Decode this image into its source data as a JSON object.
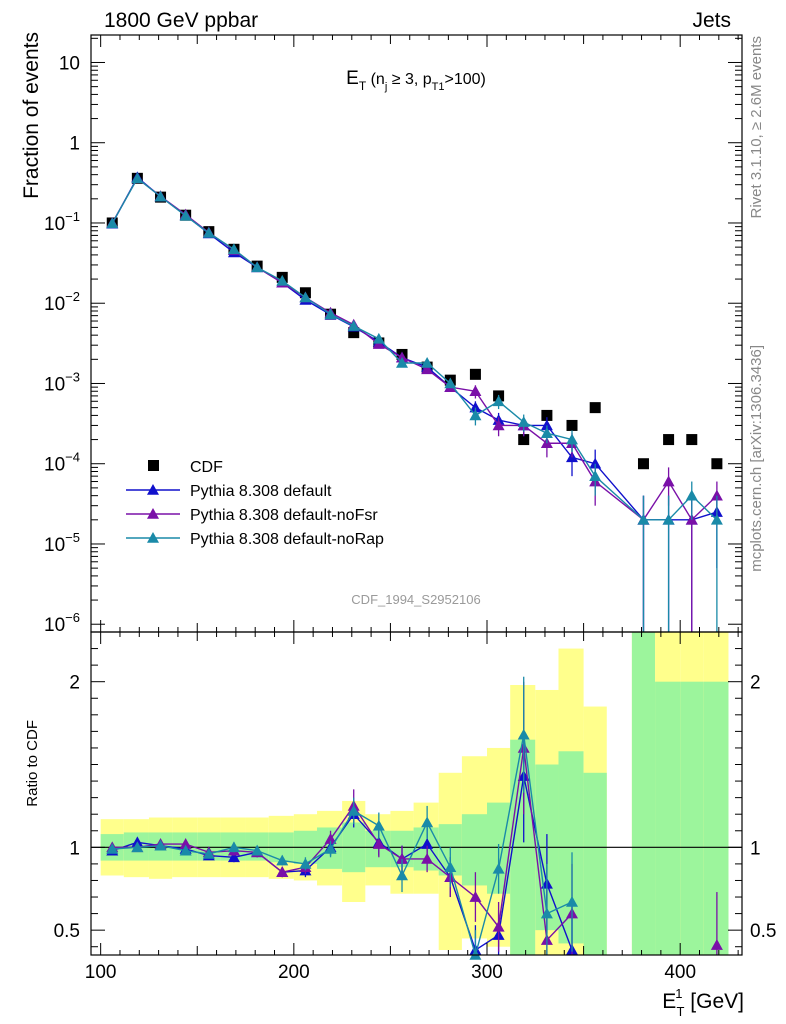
{
  "header": {
    "left": "1800 GeV ppbar",
    "right": "Jets",
    "side_top": "Rivet 3.1.10, ≥ 2.6M events",
    "side_bottom": "mcplots.cern.ch [arXiv:1306.3436]",
    "analysis_id": "CDF_1994_S2952106"
  },
  "colors": {
    "data": "#000000",
    "default": "#1010cc",
    "noFsr": "#7a10a8",
    "noRap": "#1a8aa8",
    "band_inner": "#9cf59c",
    "band_outer": "#ffff8c"
  },
  "chart_data": {
    "type": "line",
    "x_range": [
      95,
      432
    ],
    "xlabel_main": "E",
    "xlabel_sub": "T",
    "xlabel_sup": "1",
    "xlabel_unit": " [GeV]",
    "x_ticks": [
      100,
      200,
      300,
      400
    ],
    "legend_position": "lower-left",
    "top": {
      "title_main": "E",
      "title_sub": "T",
      "title_rest": " (n",
      "title_rest_sub": "j",
      "title_rest2": " ≥ 3, p",
      "title_rest2_sub": "T1",
      "title_rest3": ">100)",
      "ylabel": "Fraction of events",
      "log_scale": true,
      "y_range": [
        8e-07,
        22
      ],
      "y_ticks": [
        {
          "mant": "10",
          "exp": "",
          "value": 10
        },
        {
          "mant": "1",
          "exp": "",
          "value": 1
        },
        {
          "mant": "10",
          "exp": "−1",
          "value": 0.1
        },
        {
          "mant": "10",
          "exp": "−2",
          "value": 0.01
        },
        {
          "mant": "10",
          "exp": "−3",
          "value": 0.001
        },
        {
          "mant": "10",
          "exp": "−4",
          "value": 0.0001
        },
        {
          "mant": "10",
          "exp": "−5",
          "value": 1e-05
        },
        {
          "mant": "10",
          "exp": "−6",
          "value": 1e-06
        }
      ],
      "x": [
        106,
        119,
        131,
        144,
        156,
        169,
        181,
        194,
        206,
        219,
        231,
        244,
        256,
        269,
        281,
        294,
        306,
        319,
        331,
        344,
        356,
        381,
        394,
        406,
        419
      ],
      "series": [
        {
          "name": "CDF",
          "key": "data",
          "marker": "square",
          "values": [
            0.1,
            0.36,
            0.21,
            0.125,
            0.078,
            0.047,
            0.029,
            0.021,
            0.0135,
            0.0073,
            0.0043,
            0.0032,
            0.0023,
            0.0016,
            0.0011,
            0.0013,
            0.0007,
            0.0002,
            0.0004,
            0.0003,
            0.0005,
            0.0001,
            0.0002,
            0.0002,
            0.0001
          ]
        },
        {
          "name": "Pythia 8.308 default",
          "key": "default",
          "marker": "triangle",
          "values": [
            0.098,
            0.37,
            0.213,
            0.124,
            0.074,
            0.043,
            0.028,
            0.018,
            0.011,
            0.0072,
            0.0051,
            0.0033,
            0.0021,
            0.0016,
            0.0009,
            0.0005,
            0.00035,
            0.0003,
            0.0003,
            0.00012,
            0.0001,
            2e-05,
            2e-05,
            2e-05,
            2.5e-05
          ],
          "errors": [
            0,
            0,
            0,
            0,
            0,
            0,
            0,
            0,
            0,
            0,
            0,
            0,
            0,
            0,
            0,
            0.0001,
            8e-05,
            8e-05,
            8e-05,
            5e-05,
            5e-05,
            2e-05,
            2e-05,
            2e-05,
            2e-05
          ]
        },
        {
          "name": "Pythia 8.308 default-noFsr",
          "key": "noFsr",
          "marker": "triangle",
          "values": [
            0.1,
            0.36,
            0.215,
            0.127,
            0.076,
            0.046,
            0.028,
            0.018,
            0.0118,
            0.0076,
            0.0054,
            0.0031,
            0.0021,
            0.0015,
            0.0009,
            0.0008,
            0.0003,
            0.0003,
            0.00018,
            0.00018,
            6e-05,
            2e-05,
            6e-05,
            2e-05,
            4e-05
          ],
          "errors": [
            0,
            0,
            0,
            0,
            0,
            0,
            0,
            0,
            0,
            0,
            0,
            0,
            0,
            0,
            0,
            0.00015,
            8e-05,
            8e-05,
            6e-05,
            6e-05,
            3e-05,
            2e-05,
            3e-05,
            2e-05,
            2e-05
          ]
        },
        {
          "name": "Pythia 8.308 default-noRap",
          "key": "noRap",
          "marker": "triangle",
          "values": [
            0.099,
            0.36,
            0.213,
            0.123,
            0.075,
            0.047,
            0.028,
            0.019,
            0.0118,
            0.0073,
            0.0052,
            0.0036,
            0.0018,
            0.0018,
            0.001,
            0.0004,
            0.0006,
            0.00033,
            0.00024,
            0.0002,
            7e-05,
            2e-05,
            2e-05,
            4e-05,
            2e-05
          ],
          "errors": [
            0,
            0,
            0,
            0,
            0,
            0,
            0,
            0,
            0,
            0,
            0,
            0,
            0,
            0,
            0,
            0.0001,
            0.00012,
            8e-05,
            6e-05,
            6e-05,
            3e-05,
            2e-05,
            2e-05,
            2e-05,
            2e-05
          ]
        }
      ]
    },
    "ratio": {
      "ylabel": "Ratio to CDF",
      "reference_line": 1,
      "y_range": [
        0.35,
        2.3
      ],
      "y_ticks": [
        {
          "label": "2",
          "value": 2
        },
        {
          "label": "1",
          "value": 1
        },
        {
          "label": "0.5",
          "value": 0.5
        }
      ],
      "bands": [
        {
          "x0": 100,
          "x1": 112,
          "inner": [
            0.92,
            1.08
          ],
          "outer": [
            0.83,
            1.17
          ]
        },
        {
          "x0": 112,
          "x1": 125,
          "inner": [
            0.92,
            1.09
          ],
          "outer": [
            0.82,
            1.17
          ]
        },
        {
          "x0": 125,
          "x1": 137,
          "inner": [
            0.92,
            1.09
          ],
          "outer": [
            0.81,
            1.18
          ]
        },
        {
          "x0": 137,
          "x1": 150,
          "inner": [
            0.92,
            1.09
          ],
          "outer": [
            0.82,
            1.18
          ]
        },
        {
          "x0": 150,
          "x1": 162,
          "inner": [
            0.92,
            1.09
          ],
          "outer": [
            0.82,
            1.18
          ]
        },
        {
          "x0": 162,
          "x1": 175,
          "inner": [
            0.92,
            1.09
          ],
          "outer": [
            0.82,
            1.18
          ]
        },
        {
          "x0": 175,
          "x1": 187,
          "inner": [
            0.92,
            1.09
          ],
          "outer": [
            0.82,
            1.18
          ]
        },
        {
          "x0": 187,
          "x1": 200,
          "inner": [
            0.91,
            1.09
          ],
          "outer": [
            0.81,
            1.19
          ]
        },
        {
          "x0": 200,
          "x1": 212,
          "inner": [
            0.9,
            1.1
          ],
          "outer": [
            0.8,
            1.2
          ]
        },
        {
          "x0": 212,
          "x1": 225,
          "inner": [
            0.87,
            1.12
          ],
          "outer": [
            0.77,
            1.22
          ]
        },
        {
          "x0": 225,
          "x1": 237,
          "inner": [
            0.85,
            1.15
          ],
          "outer": [
            0.67,
            1.28
          ]
        },
        {
          "x0": 237,
          "x1": 250,
          "inner": [
            0.88,
            1.1
          ],
          "outer": [
            0.77,
            1.2
          ]
        },
        {
          "x0": 250,
          "x1": 262,
          "inner": [
            0.88,
            1.1
          ],
          "outer": [
            0.72,
            1.22
          ]
        },
        {
          "x0": 262,
          "x1": 275,
          "inner": [
            0.86,
            1.12
          ],
          "outer": [
            0.72,
            1.27
          ]
        },
        {
          "x0": 275,
          "x1": 287,
          "inner": [
            0.83,
            1.14
          ],
          "outer": [
            0.38,
            1.45
          ]
        },
        {
          "x0": 287,
          "x1": 300,
          "inner": [
            0.77,
            1.2
          ],
          "outer": [
            0.45,
            1.55
          ]
        },
        {
          "x0": 300,
          "x1": 312,
          "inner": [
            0.72,
            1.27
          ],
          "outer": [
            0.4,
            1.6
          ]
        },
        {
          "x0": 312,
          "x1": 325,
          "inner": [
            0.35,
            1.65
          ],
          "outer": [
            0.35,
            1.98
          ]
        },
        {
          "x0": 325,
          "x1": 337,
          "inner": [
            0.5,
            1.5
          ],
          "outer": [
            0.35,
            1.95
          ]
        },
        {
          "x0": 337,
          "x1": 350,
          "inner": [
            0.42,
            1.58
          ],
          "outer": [
            0.35,
            2.2
          ]
        },
        {
          "x0": 350,
          "x1": 362,
          "inner": [
            0.35,
            1.45
          ],
          "outer": [
            0.35,
            1.85
          ]
        },
        {
          "x0": 375,
          "x1": 387,
          "inner": [
            0.35,
            2.3
          ],
          "outer": [
            0.35,
            2.3
          ]
        },
        {
          "x0": 387,
          "x1": 400,
          "inner": [
            0.35,
            2.0
          ],
          "outer": [
            0.35,
            2.3
          ]
        },
        {
          "x0": 400,
          "x1": 412,
          "inner": [
            0.35,
            2.0
          ],
          "outer": [
            0.35,
            2.3
          ]
        },
        {
          "x0": 412,
          "x1": 425,
          "inner": [
            0.35,
            2.0
          ],
          "outer": [
            0.35,
            2.3
          ]
        }
      ],
      "x": [
        106,
        119,
        131,
        144,
        156,
        169,
        181,
        194,
        206,
        219,
        231,
        244,
        256,
        269,
        281,
        294,
        306,
        319,
        331,
        344,
        356,
        381,
        394,
        406,
        419
      ],
      "series": [
        {
          "name": "Pythia 8.308 default",
          "key": "default",
          "values": [
            0.98,
            1.03,
            1.01,
            0.99,
            0.95,
            0.94,
            0.97,
            0.85,
            0.86,
            1.0,
            1.2,
            1.03,
            0.93,
            1.02,
            0.82,
            0.38,
            0.47,
            1.43,
            0.78,
            0.38,
            null,
            null,
            null,
            null,
            null
          ],
          "errors": [
            0.02,
            0.02,
            0.02,
            0.02,
            0.02,
            0.03,
            0.03,
            0.03,
            0.04,
            0.05,
            0.08,
            0.08,
            0.08,
            0.1,
            0.12,
            0.15,
            0.15,
            0.4,
            0.3,
            0.3,
            null,
            null,
            null,
            null,
            null
          ]
        },
        {
          "name": "Pythia 8.308 default-noFsr",
          "key": "noFsr",
          "values": [
            1.0,
            1.0,
            1.02,
            1.02,
            0.97,
            0.98,
            0.97,
            0.85,
            0.88,
            1.05,
            1.25,
            1.02,
            0.93,
            0.93,
            0.82,
            0.7,
            0.52,
            1.6,
            0.44,
            0.6,
            null,
            null,
            null,
            null,
            0.41
          ],
          "errors": [
            0.02,
            0.02,
            0.02,
            0.02,
            0.02,
            0.03,
            0.03,
            0.03,
            0.04,
            0.05,
            0.1,
            0.08,
            0.08,
            0.08,
            0.12,
            0.15,
            0.15,
            0.4,
            0.3,
            0.3,
            null,
            null,
            null,
            null,
            0.32
          ]
        },
        {
          "name": "Pythia 8.308 default-noRap",
          "key": "noRap",
          "values": [
            0.99,
            1.0,
            1.01,
            0.98,
            0.96,
            1.0,
            0.98,
            0.92,
            0.9,
            0.99,
            1.22,
            1.13,
            0.83,
            1.15,
            0.88,
            0.35,
            0.87,
            1.68,
            0.6,
            0.67,
            null,
            null,
            null,
            null,
            null
          ],
          "errors": [
            0.02,
            0.02,
            0.02,
            0.02,
            0.02,
            0.03,
            0.03,
            0.03,
            0.04,
            0.05,
            0.08,
            0.08,
            0.1,
            0.1,
            0.12,
            0.15,
            0.15,
            0.35,
            0.3,
            0.3,
            null,
            null,
            null,
            null,
            null
          ]
        }
      ]
    }
  }
}
